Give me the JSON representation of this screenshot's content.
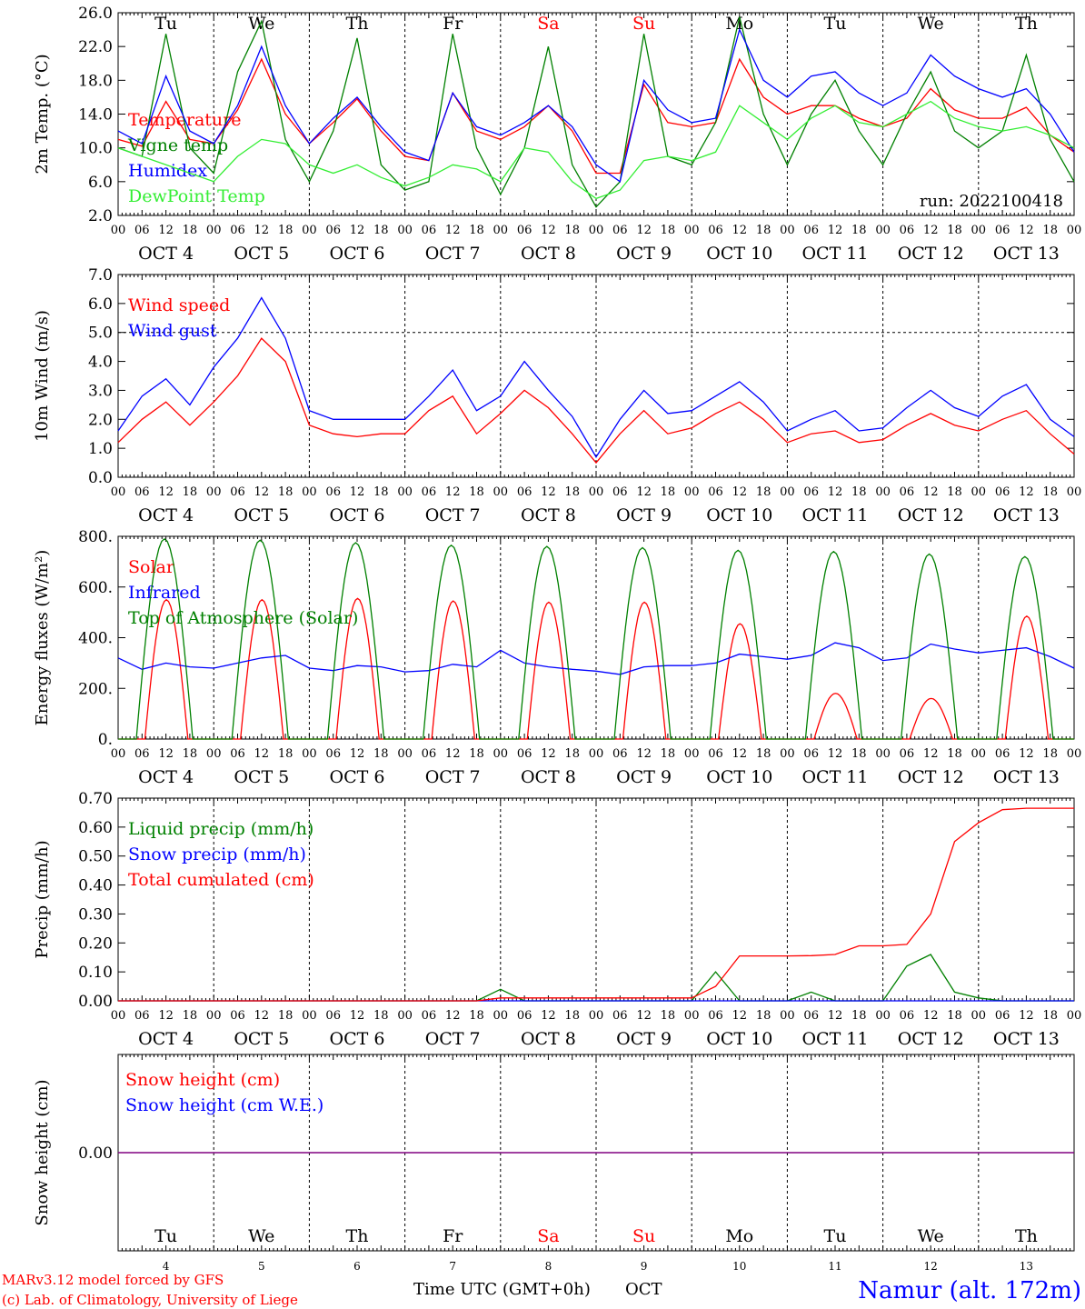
{
  "colors": {
    "red": "#ff0000",
    "green": "#008000",
    "blue": "#0000ff",
    "lightgreen": "#33ee33",
    "purple": "#800080",
    "black": "#000000"
  },
  "days": [
    "Tu",
    "We",
    "Th",
    "Fr",
    "Sa",
    "Su",
    "Mo",
    "Tu",
    "We",
    "Th"
  ],
  "weekend_days": [
    "Sa",
    "Su"
  ],
  "date_labels": [
    "OCT  4",
    "OCT  5",
    "OCT  6",
    "OCT  7",
    "OCT  8",
    "OCT  9",
    "OCT 10",
    "OCT 11",
    "OCT 12",
    "OCT 13"
  ],
  "hour_ticks": [
    "00",
    "06",
    "12",
    "18"
  ],
  "last_hour_tick": "00",
  "bottom_day_numbers": [
    "4",
    "5",
    "6",
    "7",
    "8",
    "9",
    "10",
    "11",
    "12",
    "13"
  ],
  "footer": {
    "left_line1": "MARv3.12 model forced by GFS",
    "left_line2": "(c) Lab. of Climatology, University of Liege",
    "xlabel": "Time UTC (GMT+0h)",
    "month": "OCT",
    "station": "Namur (alt. 172m)"
  },
  "chart_data": [
    {
      "type": "line",
      "ylabel": "2m Temp. (°C)",
      "ylim": [
        2.0,
        26.0
      ],
      "yticks": [
        "2.0",
        "6.0",
        "10.0",
        "14.0",
        "18.0",
        "22.0",
        "26.0"
      ],
      "run_label": "run: 2022100418",
      "x_unit": "days since OCT 4 00 UTC, sampled every 6 h",
      "series": [
        {
          "name": "Temperature",
          "color": "red",
          "values": [
            11.0,
            10.2,
            15.5,
            11.0,
            10.5,
            14.5,
            20.5,
            14.0,
            10.5,
            13.0,
            15.8,
            12.0,
            9.0,
            8.5,
            16.5,
            12.0,
            11.0,
            12.5,
            15.0,
            12.0,
            7.0,
            7.0,
            17.5,
            13.0,
            12.5,
            13.0,
            20.5,
            16.0,
            14.0,
            15.0,
            15.0,
            13.5,
            12.5,
            13.5,
            17.0,
            14.5,
            13.5,
            13.5,
            14.8,
            11.5,
            9.5
          ]
        },
        {
          "name": "Vigne temp",
          "color": "green",
          "values": [
            10.0,
            9.0,
            23.5,
            10.0,
            7.0,
            19.0,
            25.0,
            11.0,
            6.0,
            12.0,
            23.0,
            8.0,
            5.0,
            6.0,
            23.5,
            10.0,
            4.5,
            10.0,
            22.0,
            8.0,
            3.0,
            6.0,
            23.5,
            9.0,
            8.0,
            13.0,
            25.5,
            14.0,
            8.0,
            14.0,
            18.0,
            12.0,
            8.0,
            14.0,
            19.0,
            12.0,
            10.0,
            12.0,
            21.0,
            11.0,
            6.0
          ]
        },
        {
          "name": "Humidex",
          "color": "blue",
          "values": [
            12.0,
            10.5,
            18.5,
            12.0,
            10.5,
            15.0,
            22.0,
            15.0,
            10.5,
            13.5,
            16.0,
            12.5,
            9.5,
            8.5,
            16.5,
            12.5,
            11.5,
            13.0,
            15.0,
            12.5,
            8.0,
            6.0,
            18.0,
            14.5,
            13.0,
            13.5,
            24.0,
            18.0,
            16.0,
            18.5,
            19.0,
            16.5,
            15.0,
            16.5,
            21.0,
            18.5,
            17.0,
            16.0,
            17.0,
            14.0,
            9.5
          ]
        },
        {
          "name": "DewPoint Temp",
          "color": "lightgreen",
          "values": [
            10.0,
            9.0,
            8.0,
            7.0,
            6.0,
            9.0,
            11.0,
            10.5,
            8.0,
            7.0,
            8.0,
            6.5,
            5.5,
            6.5,
            8.0,
            7.5,
            6.0,
            10.0,
            9.5,
            6.0,
            4.0,
            5.0,
            8.5,
            9.0,
            8.5,
            9.5,
            15.0,
            13.0,
            11.0,
            13.5,
            15.0,
            13.0,
            12.5,
            14.0,
            15.5,
            13.5,
            12.5,
            12.0,
            12.5,
            11.5,
            10.0
          ]
        }
      ]
    },
    {
      "type": "line",
      "ylabel": "10m Wind (m/s)",
      "ylim": [
        0.0,
        7.0
      ],
      "yticks": [
        "0.0",
        "1.0",
        "2.0",
        "3.0",
        "4.0",
        "5.0",
        "6.0",
        "7.0"
      ],
      "reference_line": 5.0,
      "series": [
        {
          "name": "Wind speed",
          "color": "red",
          "values": [
            1.2,
            2.0,
            2.6,
            1.8,
            2.6,
            3.5,
            4.8,
            4.0,
            1.8,
            1.5,
            1.4,
            1.5,
            1.5,
            2.3,
            2.8,
            1.5,
            2.2,
            3.0,
            2.4,
            1.5,
            0.5,
            1.5,
            2.3,
            1.5,
            1.7,
            2.2,
            2.6,
            2.0,
            1.2,
            1.5,
            1.6,
            1.2,
            1.3,
            1.8,
            2.2,
            1.8,
            1.6,
            2.0,
            2.3,
            1.5,
            0.8
          ]
        },
        {
          "name": "Wind gust",
          "color": "blue",
          "values": [
            1.6,
            2.8,
            3.4,
            2.5,
            3.8,
            4.8,
            6.2,
            4.8,
            2.3,
            2.0,
            2.0,
            2.0,
            2.0,
            2.8,
            3.7,
            2.3,
            2.8,
            4.0,
            3.0,
            2.1,
            0.7,
            2.0,
            3.0,
            2.2,
            2.3,
            2.8,
            3.3,
            2.6,
            1.6,
            2.0,
            2.3,
            1.6,
            1.7,
            2.4,
            3.0,
            2.4,
            2.1,
            2.8,
            3.2,
            2.0,
            1.4
          ]
        }
      ]
    },
    {
      "type": "line",
      "ylabel": "Energy fluxes (W/m²)",
      "ylim": [
        0,
        800
      ],
      "yticks": [
        "0.",
        "200.",
        "400.",
        "600.",
        "800."
      ],
      "series": [
        {
          "name": "Solar",
          "color": "red",
          "peaks": [
            550,
            550,
            555,
            545,
            540,
            540,
            455,
            180,
            160,
            485
          ]
        },
        {
          "name": "Infrared",
          "color": "blue",
          "values": [
            320,
            275,
            300,
            285,
            280,
            300,
            320,
            330,
            280,
            270,
            290,
            285,
            265,
            270,
            295,
            285,
            350,
            300,
            285,
            275,
            268,
            255,
            285,
            290,
            290,
            300,
            335,
            325,
            315,
            330,
            380,
            360,
            310,
            320,
            375,
            355,
            340,
            350,
            360,
            325,
            280
          ]
        },
        {
          "name": "Top of Atmosphere (Solar)",
          "color": "green",
          "peaks": [
            790,
            785,
            775,
            765,
            760,
            755,
            745,
            740,
            730,
            720
          ]
        }
      ]
    },
    {
      "type": "line",
      "ylabel": "Precip (mm/h)",
      "ylim": [
        0.0,
        0.7
      ],
      "yticks": [
        "0.00",
        "0.10",
        "0.20",
        "0.30",
        "0.40",
        "0.50",
        "0.60",
        "0.70"
      ],
      "series": [
        {
          "name": "Liquid precip (mm/h)",
          "color": "green",
          "values": [
            0,
            0,
            0,
            0,
            0,
            0,
            0,
            0,
            0,
            0,
            0,
            0,
            0,
            0,
            0,
            0,
            0.04,
            0,
            0,
            0,
            0,
            0,
            0,
            0,
            0,
            0.1,
            0,
            0,
            0,
            0.03,
            0,
            0,
            0,
            0.12,
            0.16,
            0.03,
            0.01,
            0,
            0,
            0,
            0
          ]
        },
        {
          "name": "Snow precip (mm/h)",
          "color": "blue",
          "values": [
            0,
            0,
            0,
            0,
            0,
            0,
            0,
            0,
            0,
            0,
            0,
            0,
            0,
            0,
            0,
            0,
            0,
            0,
            0,
            0,
            0,
            0,
            0,
            0,
            0,
            0,
            0,
            0,
            0,
            0,
            0,
            0,
            0,
            0,
            0,
            0,
            0,
            0,
            0,
            0,
            0
          ]
        },
        {
          "name": "Total cumulated (cm)",
          "color": "red",
          "values": [
            0,
            0,
            0,
            0,
            0,
            0,
            0,
            0,
            0,
            0,
            0,
            0,
            0,
            0,
            0,
            0,
            0.01,
            0.01,
            0.01,
            0.01,
            0.01,
            0.01,
            0.01,
            0.01,
            0.01,
            0.05,
            0.155,
            0.155,
            0.155,
            0.156,
            0.16,
            0.19,
            0.19,
            0.195,
            0.3,
            0.55,
            0.615,
            0.66,
            0.665,
            0.665,
            0.665
          ]
        }
      ]
    },
    {
      "type": "line",
      "ylabel": "Snow height (cm)",
      "ylim": [
        -0.1,
        0.1
      ],
      "yticks": [
        "0.00"
      ],
      "series": [
        {
          "name": "Snow height (cm)",
          "color": "red",
          "values": [
            0,
            0
          ]
        },
        {
          "name": "Snow height (cm W.E.)",
          "color": "blue",
          "values": [
            0,
            0
          ]
        }
      ]
    }
  ]
}
